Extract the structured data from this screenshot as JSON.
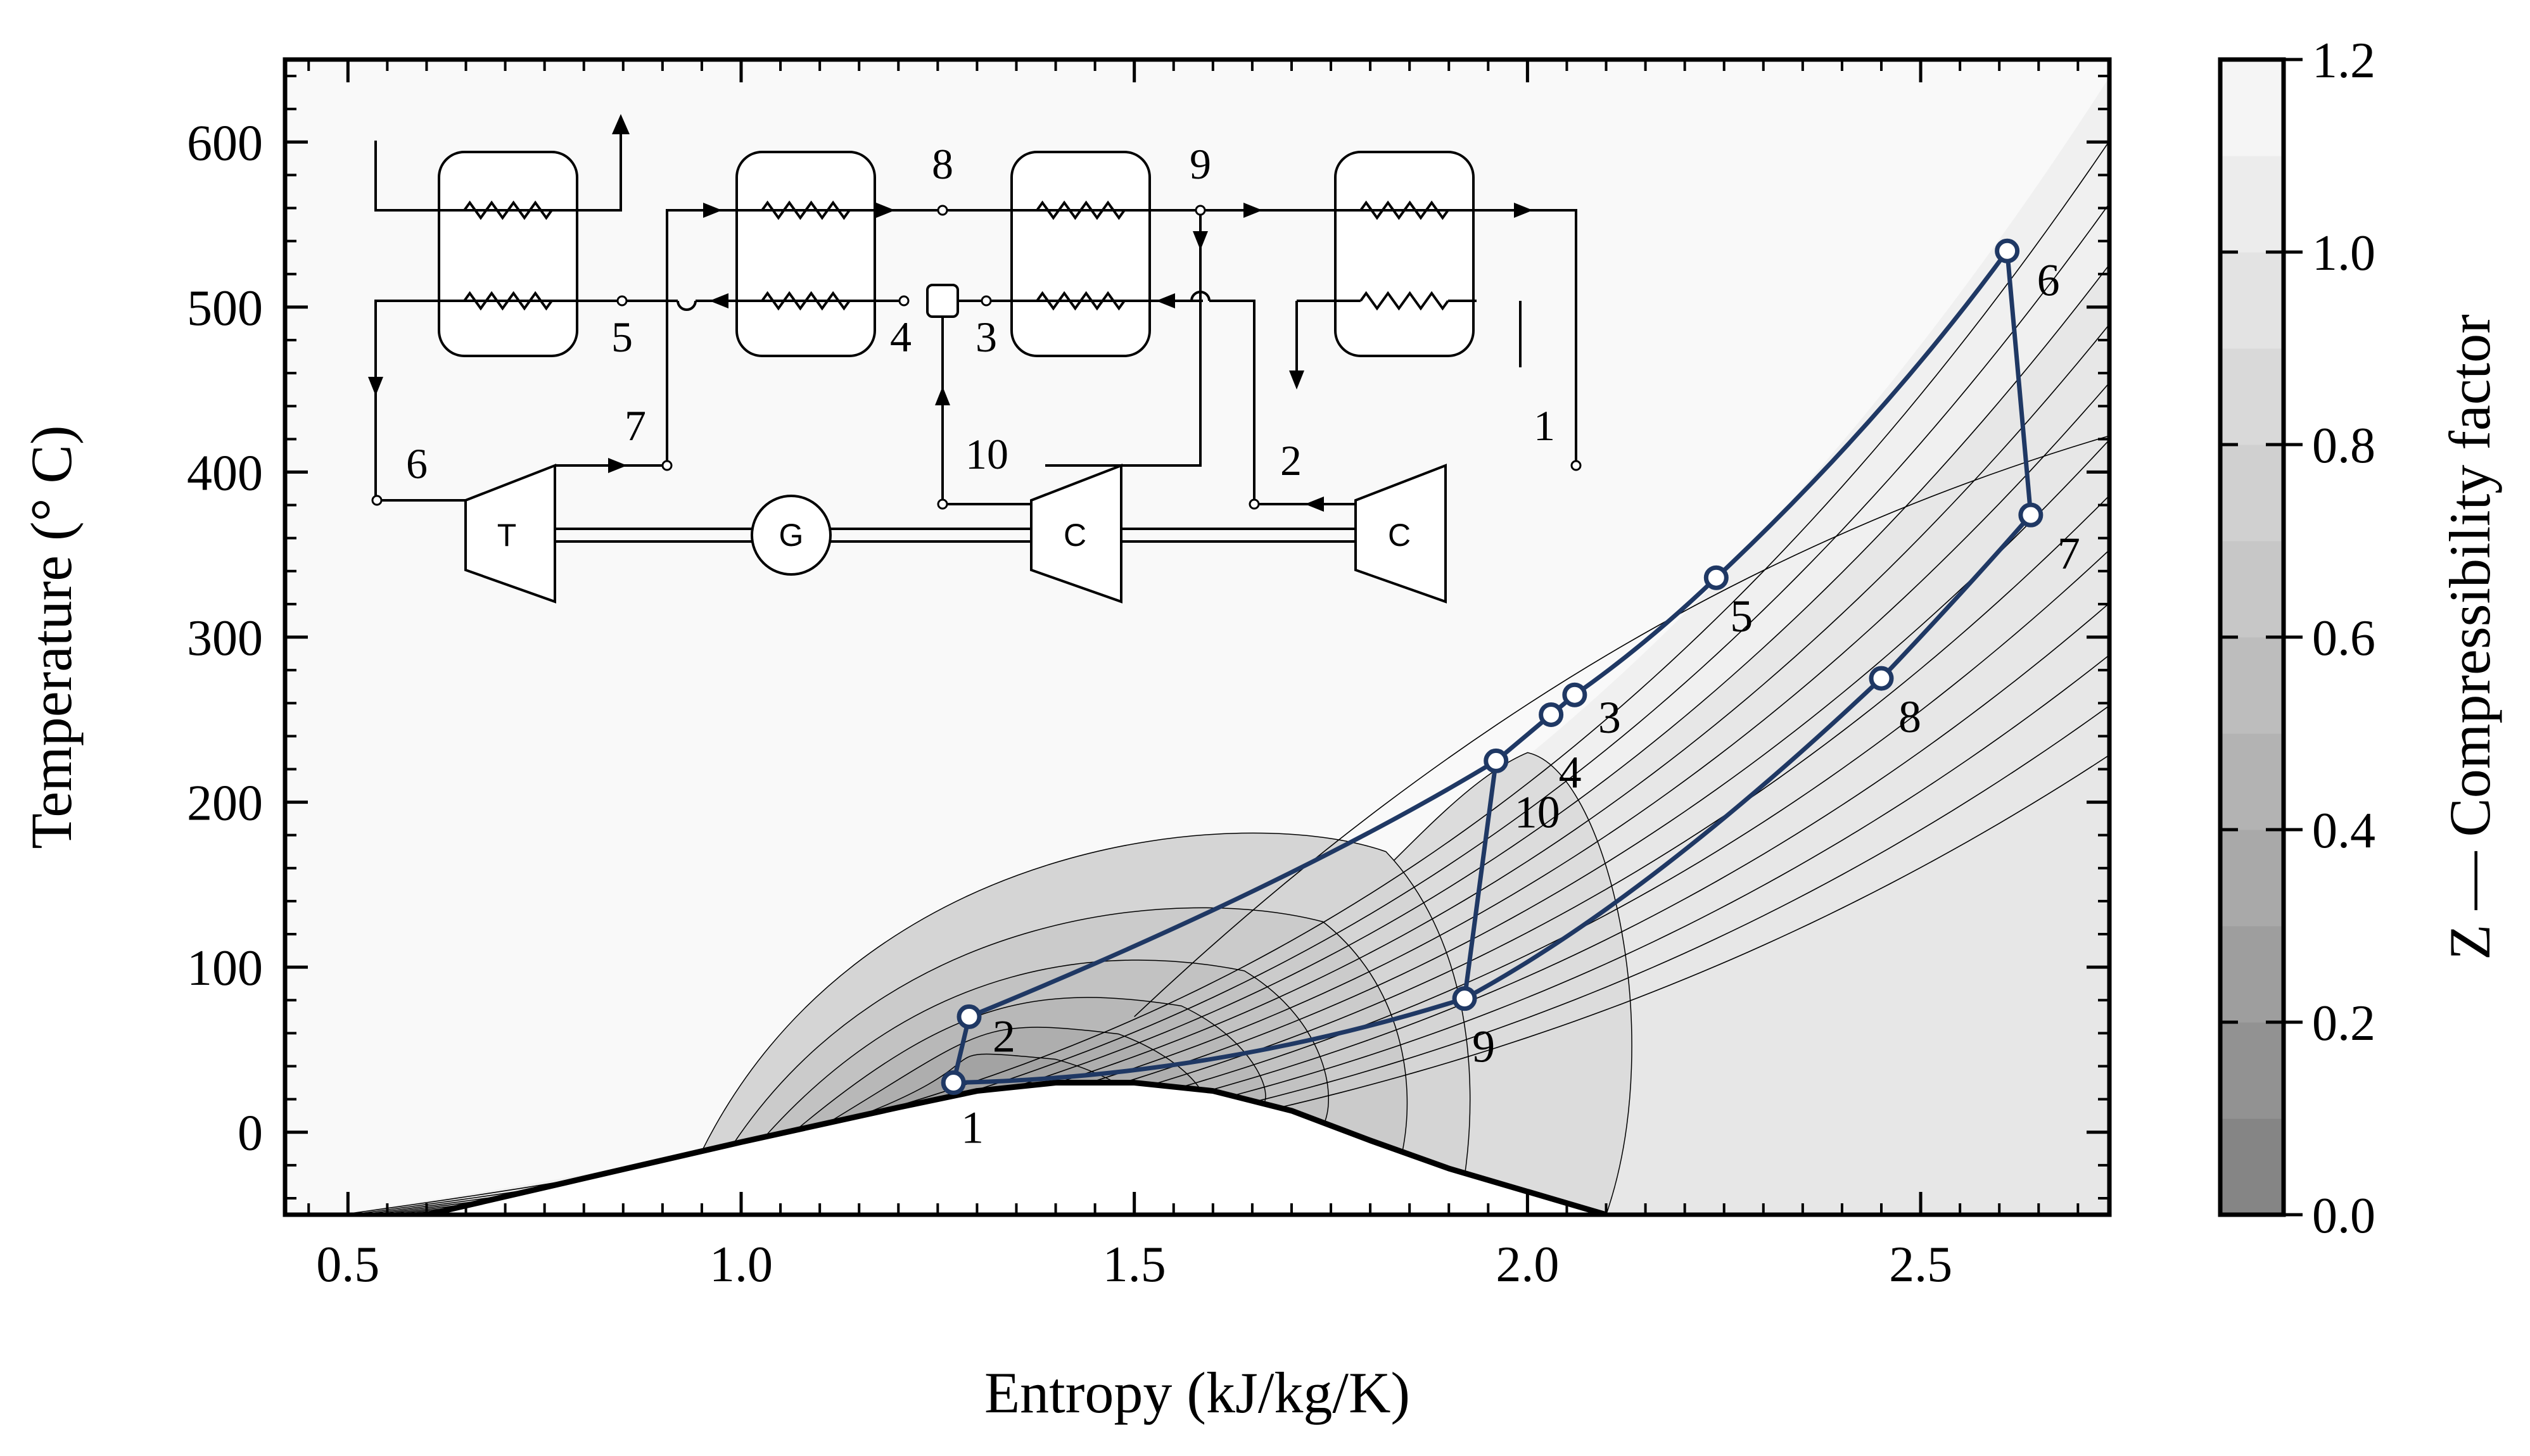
{
  "chart_data": {
    "type": "line",
    "xlabel": "Entropy (kJ/kg/K)",
    "ylabel": "Temperature (° C)",
    "xlim": [
      0.42,
      2.74
    ],
    "ylim": [
      -50,
      650
    ],
    "x_ticks": [
      0.5,
      1.0,
      1.5,
      2.0,
      2.5
    ],
    "x_tick_labels": [
      "0.5",
      "1.0",
      "1.5",
      "2.0",
      "2.5"
    ],
    "y_ticks": [
      0,
      100,
      200,
      300,
      400,
      500,
      600
    ],
    "y_tick_labels": [
      "0",
      "100",
      "200",
      "300",
      "400",
      "500",
      "600"
    ],
    "grid": false,
    "colorbar": {
      "label": "Z — Compressibility factor",
      "range": [
        0.0,
        1.2
      ],
      "ticks": [
        0.0,
        0.2,
        0.4,
        0.6,
        0.8,
        1.0,
        1.2
      ],
      "tick_labels": [
        "0.0",
        "0.2",
        "0.4",
        "0.6",
        "0.8",
        "1.0",
        "1.2"
      ],
      "color_low": "#7d7d7d",
      "color_high": "#f9f9f9"
    },
    "saturation_dome": {
      "s": [
        0.6,
        0.8,
        1.0,
        1.2,
        1.3,
        1.4,
        1.5,
        1.6,
        1.7,
        1.8,
        1.9,
        2.0,
        2.1
      ],
      "T": [
        -50,
        -28,
        -6,
        15,
        25,
        30,
        30,
        25,
        13,
        -5,
        -22,
        -36,
        -50
      ]
    },
    "cycle": {
      "color": "#1f3864",
      "states": [
        {
          "label": "1",
          "s": 1.27,
          "T": 30
        },
        {
          "label": "2",
          "s": 1.29,
          "T": 70
        },
        {
          "label": "3",
          "s": 2.06,
          "T": 265
        },
        {
          "label": "4",
          "s": 2.03,
          "T": 253
        },
        {
          "label": "5",
          "s": 2.24,
          "T": 336
        },
        {
          "label": "6",
          "s": 2.61,
          "T": 534
        },
        {
          "label": "7",
          "s": 2.64,
          "T": 374
        },
        {
          "label": "8",
          "s": 2.45,
          "T": 275
        },
        {
          "label": "9",
          "s": 1.92,
          "T": 81
        },
        {
          "label": "10",
          "s": 1.96,
          "T": 225
        }
      ]
    }
  },
  "schematic": {
    "turbine_label": "T",
    "generator_label": "G",
    "compressor_labels": [
      "C",
      "C"
    ],
    "node_labels": [
      "1",
      "2",
      "3",
      "4",
      "5",
      "6",
      "7",
      "8",
      "9",
      "10"
    ]
  }
}
